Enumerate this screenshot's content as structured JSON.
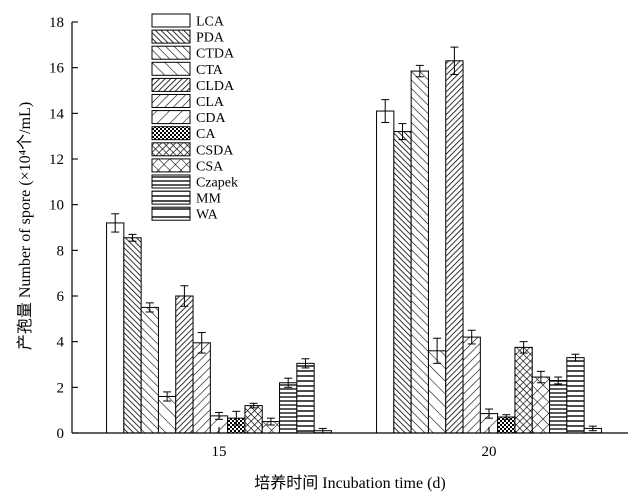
{
  "chart_data": {
    "type": "bar",
    "xlabel": "培养时间 Incubation time (d)",
    "ylabel": "产孢量 Number of spore (×10⁴个/mL)",
    "ylim": [
      0,
      18
    ],
    "yticks": [
      0,
      2,
      4,
      6,
      8,
      10,
      12,
      14,
      16,
      18
    ],
    "categories": [
      "15",
      "20"
    ],
    "legend_position": "top-left",
    "error_bars": true,
    "series": [
      {
        "name": "LCA",
        "pattern": "empty",
        "values": [
          9.2,
          14.1
        ],
        "errors": [
          0.4,
          0.5
        ]
      },
      {
        "name": "PDA",
        "pattern": "diag-dense",
        "values": [
          8.55,
          13.2
        ],
        "errors": [
          0.15,
          0.35
        ]
      },
      {
        "name": "CTDA",
        "pattern": "diag",
        "values": [
          5.5,
          15.85
        ],
        "errors": [
          0.2,
          0.25
        ]
      },
      {
        "name": "CTA",
        "pattern": "diag-sparse",
        "values": [
          1.6,
          3.6
        ],
        "errors": [
          0.2,
          0.55
        ]
      },
      {
        "name": "CLDA",
        "pattern": "back-dense",
        "values": [
          6.0,
          16.3
        ],
        "errors": [
          0.45,
          0.6
        ]
      },
      {
        "name": "CLA",
        "pattern": "back",
        "values": [
          3.95,
          4.2
        ],
        "errors": [
          0.45,
          0.3
        ]
      },
      {
        "name": "CDA",
        "pattern": "back-sparse",
        "values": [
          0.75,
          0.85
        ],
        "errors": [
          0.15,
          0.2
        ]
      },
      {
        "name": "CA",
        "pattern": "dots",
        "values": [
          0.65,
          0.7
        ],
        "errors": [
          0.3,
          0.1
        ]
      },
      {
        "name": "CSDA",
        "pattern": "cross-dense",
        "values": [
          1.2,
          3.75
        ],
        "errors": [
          0.1,
          0.25
        ]
      },
      {
        "name": "CSA",
        "pattern": "cross",
        "values": [
          0.5,
          2.45
        ],
        "errors": [
          0.15,
          0.25
        ]
      },
      {
        "name": "Czapek",
        "pattern": "hlines",
        "values": [
          2.2,
          2.3
        ],
        "errors": [
          0.2,
          0.15
        ]
      },
      {
        "name": "MM",
        "pattern": "hlines-sparse",
        "values": [
          3.05,
          3.3
        ],
        "errors": [
          0.2,
          0.15
        ]
      },
      {
        "name": "WA",
        "pattern": "hlines-wide",
        "values": [
          0.1,
          0.2
        ],
        "errors": [
          0.1,
          0.1
        ]
      }
    ]
  }
}
